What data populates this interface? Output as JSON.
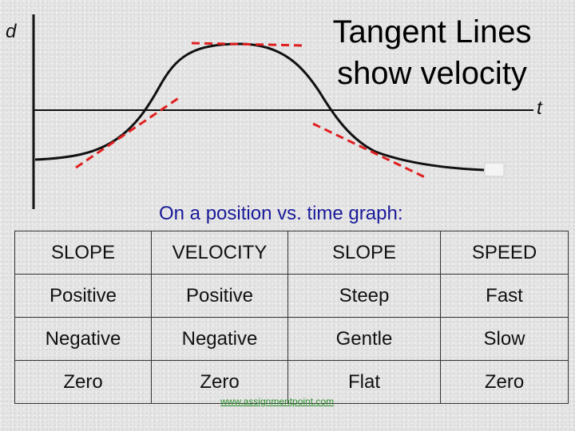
{
  "title_lines": [
    "Tangent Lines",
    "show velocity"
  ],
  "axes": {
    "y_label": "d",
    "x_label": "t"
  },
  "colors": {
    "curve": "#111111",
    "tangent": "#e02020",
    "caption": "#1a1a9a",
    "link": "#2d8f2d"
  },
  "caption": "On a position vs. time graph:",
  "table": {
    "headers": [
      "SLOPE",
      "VELOCITY",
      "SLOPE",
      "SPEED"
    ],
    "rows": [
      [
        "Positive",
        "Positive",
        "Steep",
        "Fast"
      ],
      [
        "Negative",
        "Negative",
        "Gentle",
        "Slow"
      ],
      [
        "Zero",
        "Zero",
        "Flat",
        "Zero"
      ]
    ]
  },
  "footer": "www.assignmentpoint.com"
}
